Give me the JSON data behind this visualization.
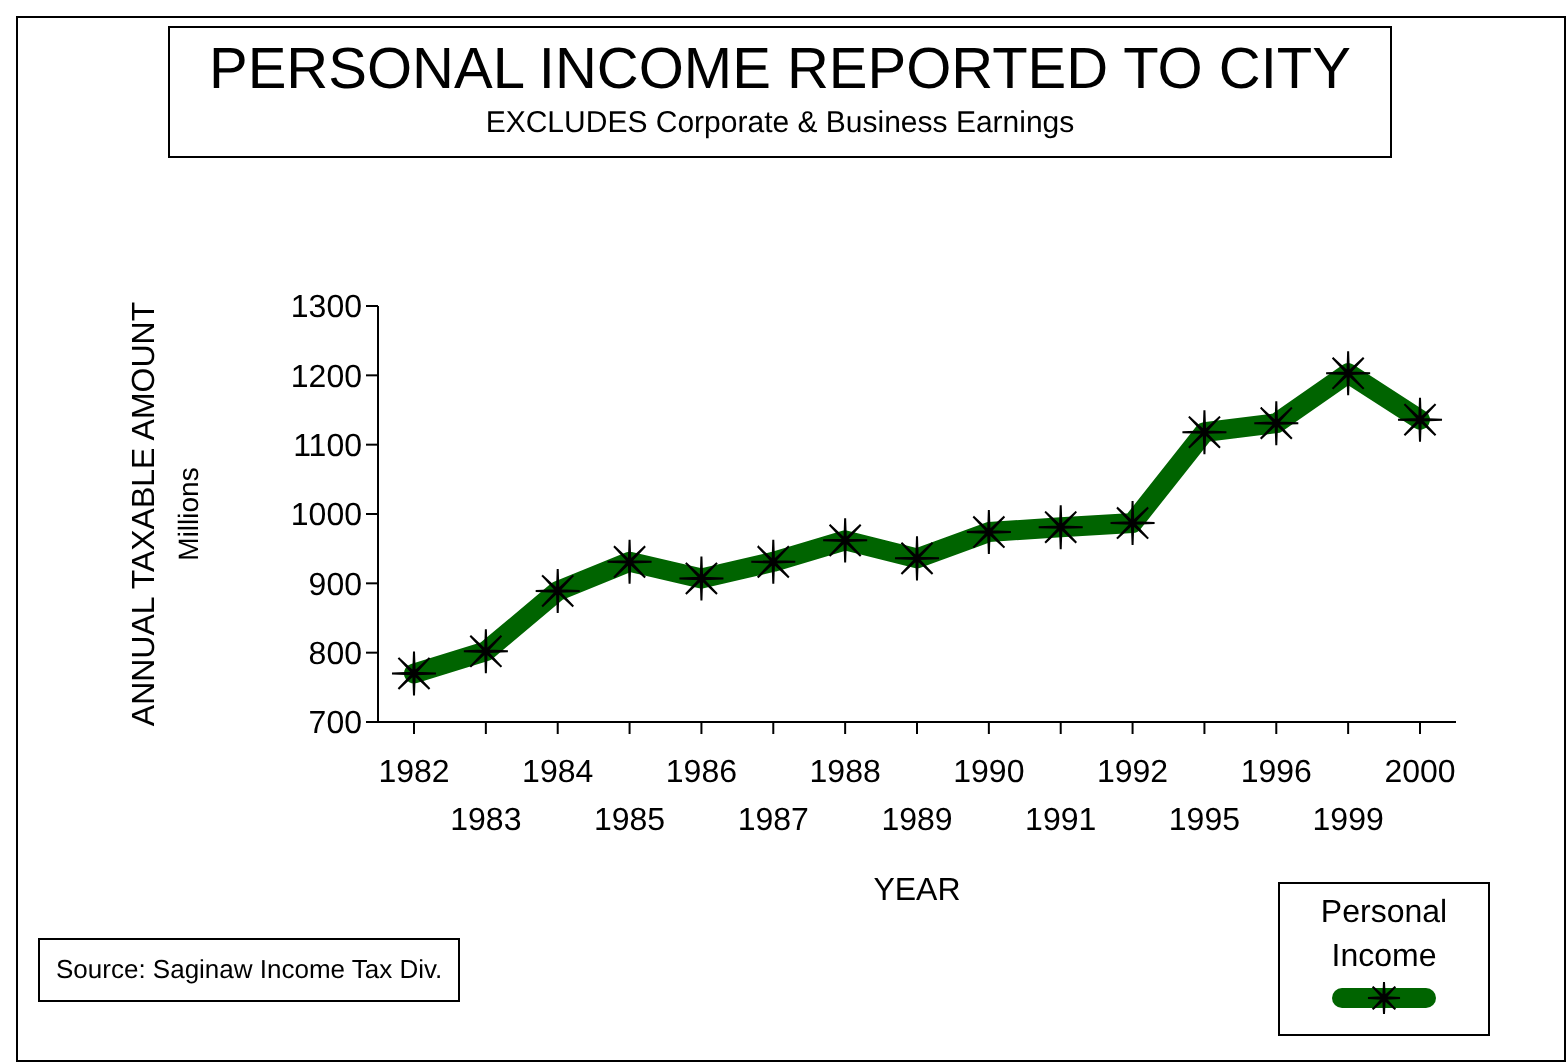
{
  "chart_data": {
    "type": "line",
    "title": "PERSONAL INCOME REPORTED TO CITY",
    "subtitle": "EXCLUDES Corporate & Business Earnings",
    "xlabel": "YEAR",
    "ylabel": "ANNUAL TAXABLE AMOUNT\nMillions",
    "categories": [
      "1982",
      "1983",
      "1984",
      "1985",
      "1986",
      "1987",
      "1988",
      "1989",
      "1990",
      "1991",
      "1992",
      "1995",
      "1996",
      "1999",
      "2000"
    ],
    "series": [
      {
        "name": "Personal Income",
        "color": "#006400",
        "values": [
          770,
          802,
          889,
          931,
          907,
          931,
          962,
          936,
          974,
          981,
          987,
          1118,
          1131,
          1203,
          1136
        ]
      }
    ],
    "ylim": [
      700,
      1300
    ],
    "yticks": [
      700,
      800,
      900,
      1000,
      1100,
      1200,
      1300
    ],
    "marker": "cross",
    "line_style": "solid",
    "legend": "bottom right",
    "annotations": [
      "Source: Saginaw Income Tax Div."
    ]
  }
}
